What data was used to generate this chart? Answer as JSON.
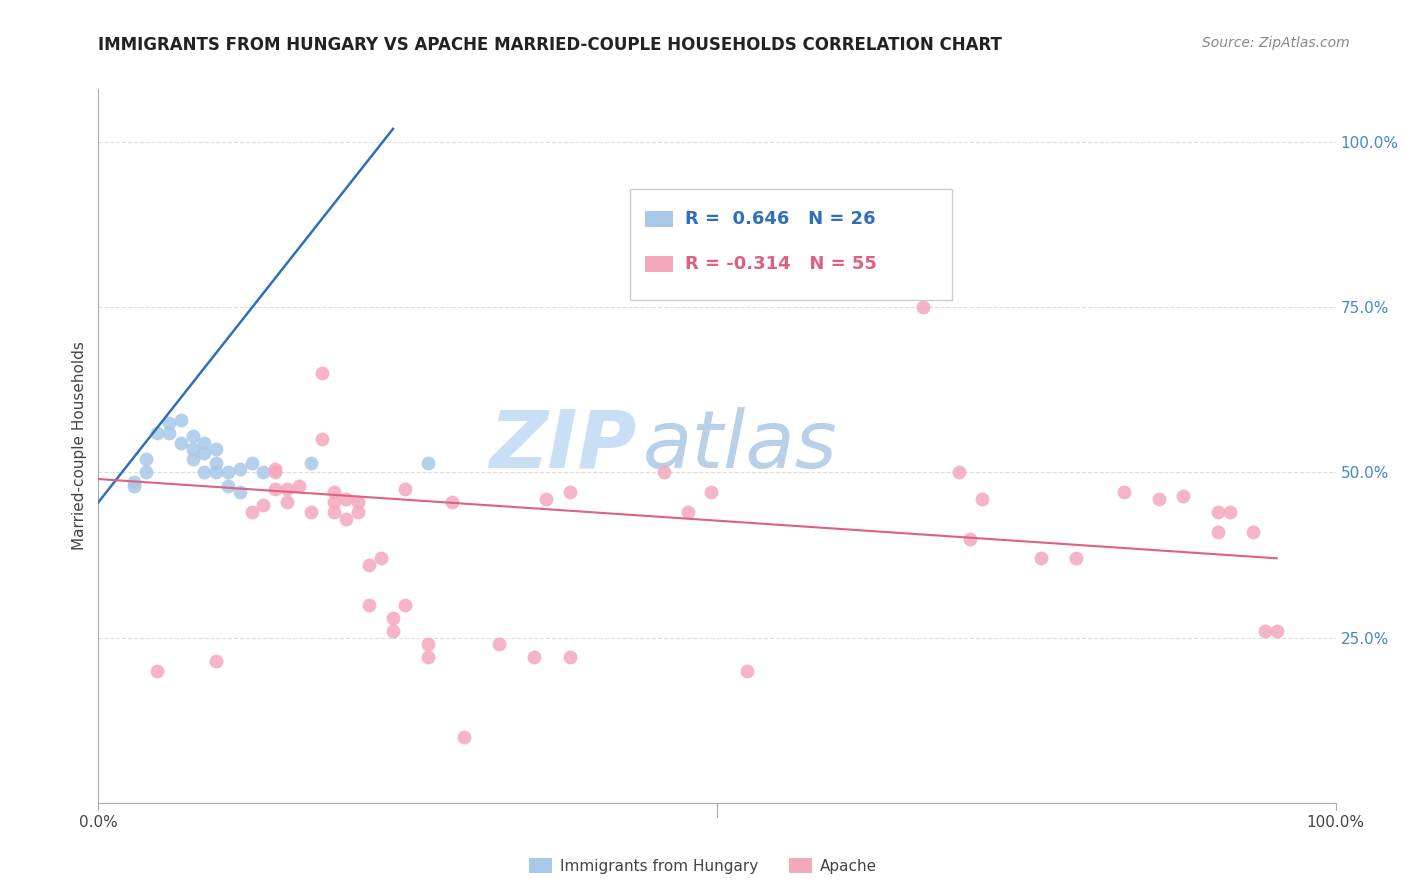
{
  "title": "IMMIGRANTS FROM HUNGARY VS APACHE MARRIED-COUPLE HOUSEHOLDS CORRELATION CHART",
  "source": "Source: ZipAtlas.com",
  "ylabel": "Married-couple Households",
  "legend_label1": "Immigrants from Hungary",
  "legend_label2": "Apache",
  "r1": 0.646,
  "n1": 26,
  "r2": -0.314,
  "n2": 55,
  "color_blue": "#a8c8e8",
  "color_pink": "#f4a8bc",
  "line_blue": "#3070b8",
  "line_pink": "#e06080",
  "watermark_zip": "ZIP",
  "watermark_atlas": "atlas",
  "watermark_color_zip": "#c8dff5",
  "watermark_color_atlas": "#b8d0e8",
  "blue_points_x": [
    0.003,
    0.003,
    0.004,
    0.004,
    0.005,
    0.006,
    0.006,
    0.007,
    0.007,
    0.008,
    0.008,
    0.008,
    0.009,
    0.009,
    0.009,
    0.01,
    0.01,
    0.01,
    0.011,
    0.011,
    0.012,
    0.012,
    0.013,
    0.014,
    0.018,
    0.028
  ],
  "blue_points_y": [
    0.485,
    0.48,
    0.5,
    0.52,
    0.56,
    0.575,
    0.56,
    0.58,
    0.545,
    0.555,
    0.535,
    0.52,
    0.545,
    0.53,
    0.5,
    0.535,
    0.515,
    0.5,
    0.5,
    0.48,
    0.505,
    0.47,
    0.515,
    0.5,
    0.515,
    0.515
  ],
  "pink_points_x": [
    0.005,
    0.01,
    0.013,
    0.014,
    0.015,
    0.015,
    0.015,
    0.016,
    0.016,
    0.017,
    0.018,
    0.019,
    0.019,
    0.02,
    0.02,
    0.02,
    0.021,
    0.021,
    0.022,
    0.022,
    0.023,
    0.023,
    0.024,
    0.025,
    0.025,
    0.026,
    0.026,
    0.028,
    0.028,
    0.03,
    0.031,
    0.034,
    0.037,
    0.038,
    0.04,
    0.04,
    0.048,
    0.05,
    0.052,
    0.055,
    0.07,
    0.073,
    0.074,
    0.075,
    0.08,
    0.083,
    0.087,
    0.09,
    0.092,
    0.095,
    0.095,
    0.096,
    0.098,
    0.099,
    0.1
  ],
  "pink_points_y": [
    0.2,
    0.215,
    0.44,
    0.45,
    0.475,
    0.5,
    0.505,
    0.475,
    0.455,
    0.48,
    0.44,
    0.55,
    0.65,
    0.44,
    0.47,
    0.455,
    0.46,
    0.43,
    0.455,
    0.44,
    0.36,
    0.3,
    0.37,
    0.28,
    0.26,
    0.475,
    0.3,
    0.24,
    0.22,
    0.455,
    0.1,
    0.24,
    0.22,
    0.46,
    0.47,
    0.22,
    0.5,
    0.44,
    0.47,
    0.2,
    0.75,
    0.5,
    0.4,
    0.46,
    0.37,
    0.37,
    0.47,
    0.46,
    0.465,
    0.44,
    0.41,
    0.44,
    0.41,
    0.26,
    0.26
  ],
  "blue_line_x": [
    0.0,
    0.025
  ],
  "blue_line_y": [
    0.455,
    1.02
  ],
  "pink_line_x": [
    0.0,
    0.1
  ],
  "pink_line_y": [
    0.49,
    0.37
  ],
  "xlim": [
    0.0,
    0.105
  ],
  "ylim": [
    0.0,
    1.08
  ],
  "ytick_positions": [
    0.25,
    0.5,
    0.75,
    1.0
  ],
  "ytick_labels": [
    "25.0%",
    "50.0%",
    "75.0%",
    "100.0%"
  ],
  "background_color": "#ffffff",
  "grid_color": "#dddddd",
  "title_fontsize": 12,
  "source_fontsize": 10,
  "tick_fontsize": 11,
  "ylabel_fontsize": 11
}
